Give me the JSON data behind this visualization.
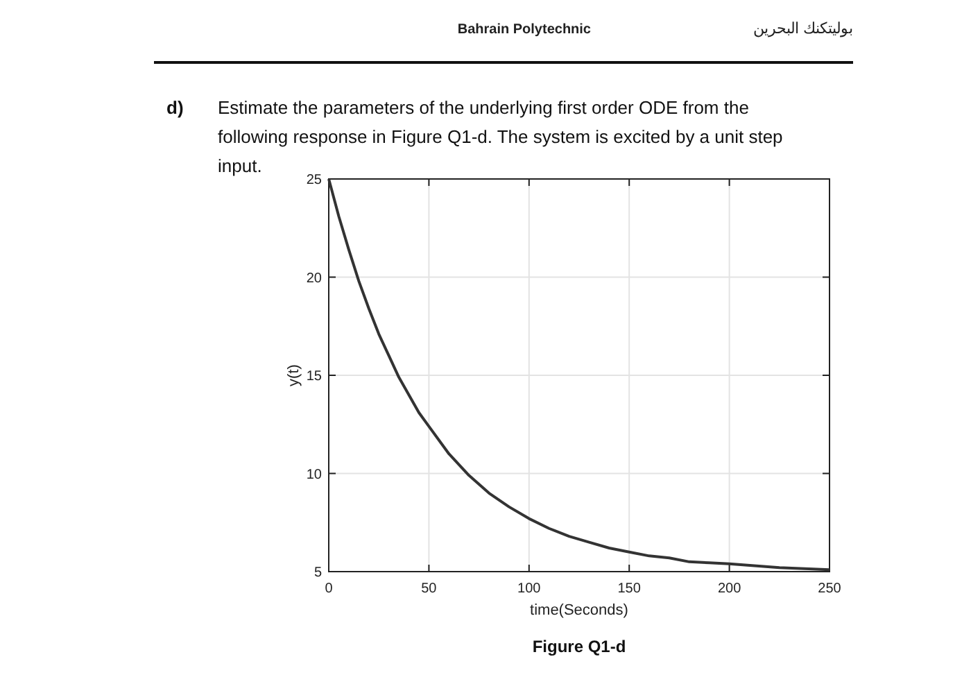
{
  "chart_data": {
    "type": "line",
    "title": "Estimate the parameters of the underlying first order ODE from the following response in Figure Q1-d. The system is excited by a unit step input.",
    "annotations": [
      "Bahrain Polytechnic",
      "بوليتكنك البحرين",
      "d)",
      "Figure Q1-d"
    ],
    "xlabel": "time(Seconds)",
    "ylabel": "y(t)",
    "x": [
      0,
      5,
      10,
      15,
      20,
      25,
      30,
      35,
      40,
      45,
      50,
      60,
      70,
      80,
      90,
      100,
      110,
      120,
      130,
      140,
      150,
      160,
      170,
      180,
      190,
      200,
      225,
      250
    ],
    "series": [
      {
        "color": "#333333",
        "values": [
          25,
          23.1,
          21.4,
          19.8,
          18.4,
          17.1,
          16.0,
          14.9,
          14.0,
          13.1,
          12.4,
          11.0,
          9.9,
          9.0,
          8.3,
          7.7,
          7.2,
          6.8,
          6.5,
          6.2,
          6.0,
          5.8,
          5.7,
          5.5,
          5.45,
          5.4,
          5.2,
          5.1
        ]
      }
    ],
    "xlim": [
      0,
      250
    ],
    "ylim": [
      5,
      25
    ],
    "xticks": [
      0,
      50,
      100,
      150,
      200,
      250
    ],
    "yticks": [
      5,
      10,
      15,
      20,
      25
    ],
    "grid": true,
    "line_style": "solid",
    "marker": "none"
  }
}
